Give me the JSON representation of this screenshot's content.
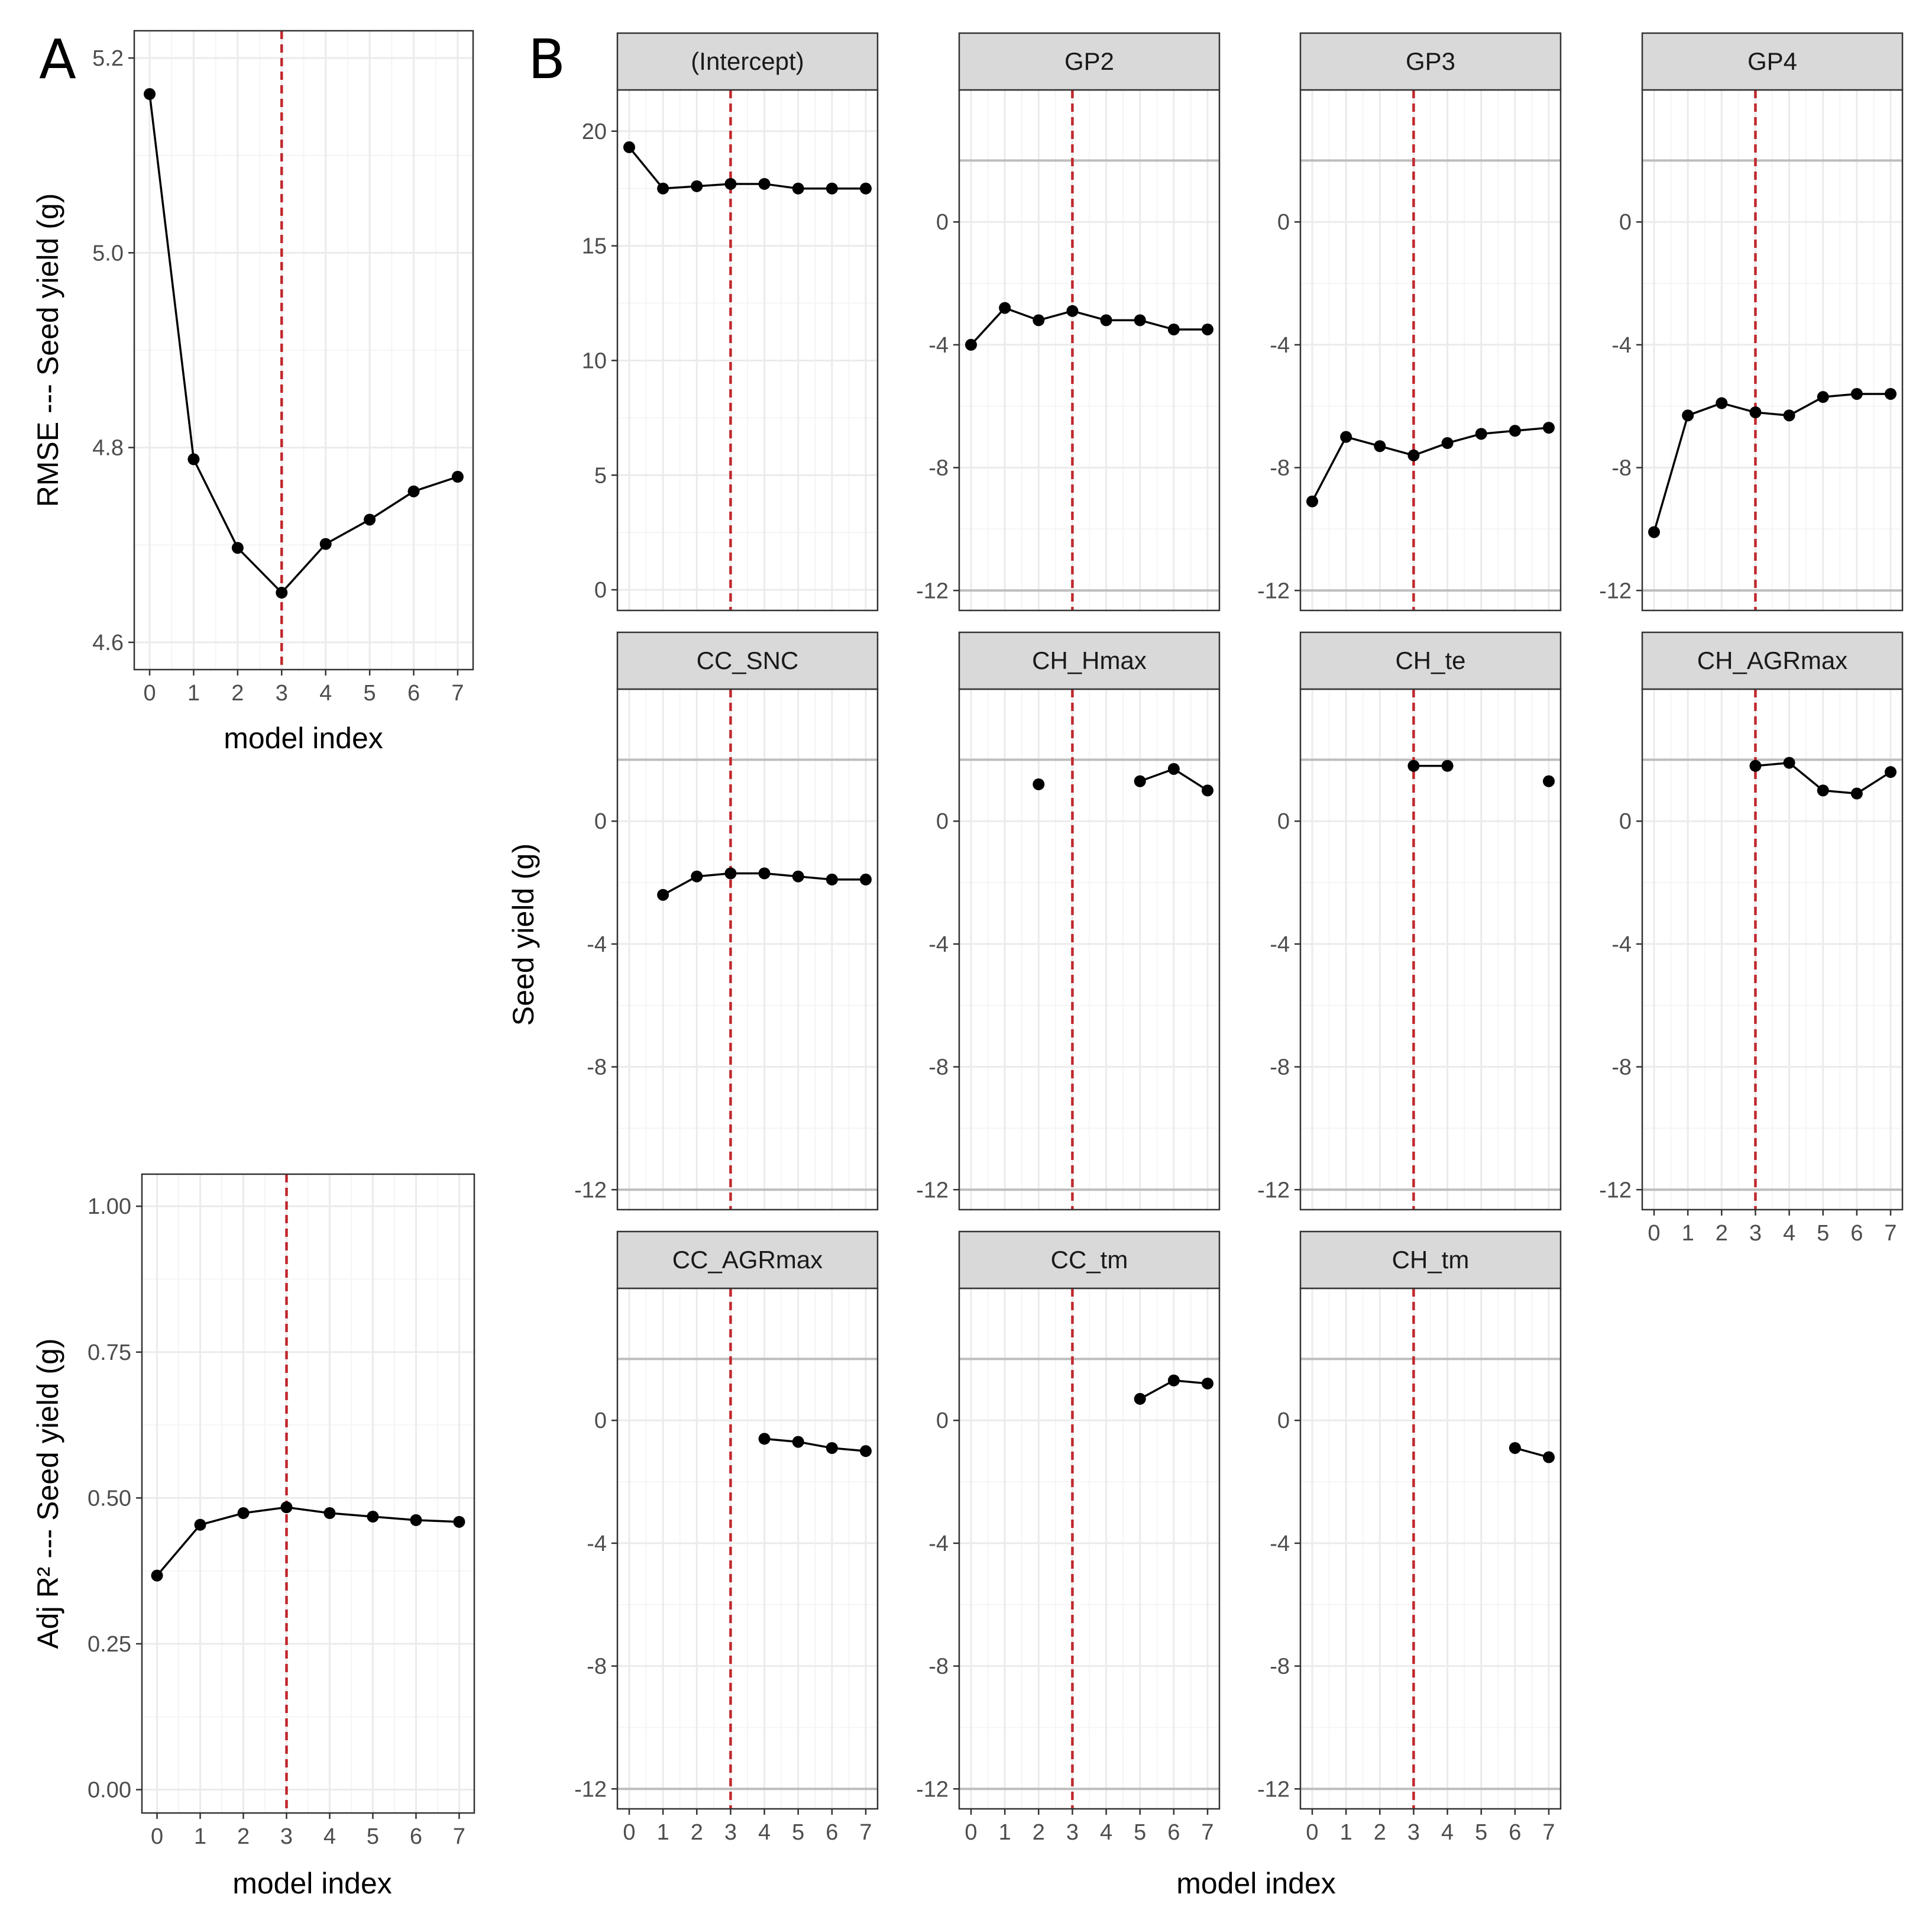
{
  "figure": {
    "panel_a_label": "A",
    "panel_b_label": "B",
    "colors": {
      "line": "#000000",
      "point": "#000000",
      "ref_line": "#c0282d",
      "strip_fill": "#d9d9d9",
      "grid_major": "#ebebeb",
      "grid_minor": "#f5f5f5",
      "panel_border": "#333333"
    }
  },
  "chart_data": [
    {
      "id": "rmse",
      "type": "line",
      "title": "",
      "xlabel": "model index",
      "ylabel": "RMSE --- Seed yield (g)",
      "x": [
        0,
        1,
        2,
        3,
        4,
        5,
        6,
        7
      ],
      "values": [
        5.163,
        4.788,
        4.697,
        4.651,
        4.701,
        4.726,
        4.755,
        4.77
      ],
      "xlim": [
        -0.35,
        7.35
      ],
      "ylim": [
        4.572,
        5.228
      ],
      "xticks": [
        0,
        1,
        2,
        3,
        4,
        5,
        6,
        7
      ],
      "xtick_labels": [
        "0",
        "1",
        "2",
        "3",
        "4",
        "5",
        "6",
        "7"
      ],
      "yticks": [
        4.6,
        4.8,
        5.0,
        5.2
      ],
      "ytick_labels": [
        "4.6",
        "4.8",
        "5.0",
        "5.2"
      ],
      "yminor": [
        4.7,
        4.9,
        5.1
      ],
      "vline_x": 3
    },
    {
      "id": "adjr2",
      "type": "line",
      "title": "",
      "xlabel": "model index",
      "ylabel": "Adj R² --- Seed yield (g)",
      "x": [
        0,
        1,
        2,
        3,
        4,
        5,
        6,
        7
      ],
      "values": [
        0.367,
        0.454,
        0.474,
        0.484,
        0.474,
        0.468,
        0.462,
        0.459
      ],
      "xlim": [
        -0.35,
        7.35
      ],
      "ylim": [
        -0.04,
        1.055
      ],
      "xticks": [
        0,
        1,
        2,
        3,
        4,
        5,
        6,
        7
      ],
      "xtick_labels": [
        "0",
        "1",
        "2",
        "3",
        "4",
        "5",
        "6",
        "7"
      ],
      "yticks": [
        0,
        0.25,
        0.5,
        0.75,
        1.0
      ],
      "ytick_labels": [
        "0.00",
        "0.25",
        "0.50",
        "0.75",
        "1.00"
      ],
      "yminor": [
        0.125,
        0.375,
        0.625,
        0.875
      ],
      "vline_x": 3
    },
    {
      "id": "coef",
      "type": "line",
      "facet": true,
      "xlabel": "model index",
      "ylabel": "Seed yield (g)",
      "x": [
        0,
        1,
        2,
        3,
        4,
        5,
        6,
        7
      ],
      "xlim": [
        -0.35,
        7.35
      ],
      "xticks": [
        0,
        1,
        2,
        3,
        4,
        5,
        6,
        7
      ],
      "xtick_labels": [
        "0",
        "1",
        "2",
        "3",
        "4",
        "5",
        "6",
        "7"
      ],
      "vline_x": 3,
      "intercept_ylim": [
        -0.9,
        21.8
      ],
      "intercept_yticks": [
        0,
        5,
        10,
        15,
        20
      ],
      "intercept_ytick_labels": [
        "0",
        "5",
        "10",
        "15",
        "20"
      ],
      "intercept_yminor": [
        2.5,
        7.5,
        12.5,
        17.5
      ],
      "coef_ylim": [
        -12.65,
        4.3
      ],
      "coef_yticks": [
        -12,
        -8,
        -4,
        0
      ],
      "coef_ytick_labels": [
        "-12",
        "-8",
        "-4",
        "0"
      ],
      "coef_yminor": [
        -10,
        -6,
        -2
      ],
      "coef_hlines": [
        -12,
        2
      ],
      "series": [
        {
          "name": "(Intercept)",
          "values": [
            19.3,
            17.5,
            17.6,
            17.7,
            17.7,
            17.5,
            17.5,
            17.5
          ]
        },
        {
          "name": "GP2",
          "values": [
            -4.0,
            -2.8,
            -3.2,
            -2.9,
            -3.2,
            -3.2,
            -3.5,
            -3.5
          ]
        },
        {
          "name": "GP3",
          "values": [
            -9.1,
            -7.0,
            -7.3,
            -7.6,
            -7.2,
            -6.9,
            -6.8,
            -6.7
          ]
        },
        {
          "name": "GP4",
          "values": [
            -10.1,
            -6.3,
            -5.9,
            -6.2,
            -6.3,
            -5.7,
            -5.6,
            -5.6
          ]
        },
        {
          "name": "CC_SNC",
          "values": [
            null,
            -2.4,
            -1.8,
            -1.7,
            -1.7,
            -1.8,
            -1.9,
            -1.9
          ]
        },
        {
          "name": "CH_Hmax",
          "values": [
            null,
            null,
            1.2,
            null,
            null,
            1.3,
            1.7,
            1.0
          ]
        },
        {
          "name": "CH_te",
          "values": [
            null,
            null,
            null,
            1.8,
            1.8,
            null,
            null,
            1.3
          ]
        },
        {
          "name": "CH_AGRmax",
          "values": [
            null,
            null,
            null,
            1.8,
            1.9,
            1.0,
            0.9,
            1.6
          ]
        },
        {
          "name": "CC_AGRmax",
          "values": [
            null,
            null,
            null,
            null,
            -0.6,
            -0.7,
            -0.9,
            -1.0
          ]
        },
        {
          "name": "CC_tm",
          "values": [
            null,
            null,
            null,
            null,
            null,
            0.7,
            1.3,
            1.2
          ]
        },
        {
          "name": "CH_tm",
          "values": [
            null,
            null,
            null,
            null,
            null,
            null,
            -0.9,
            -1.2
          ]
        }
      ]
    }
  ]
}
